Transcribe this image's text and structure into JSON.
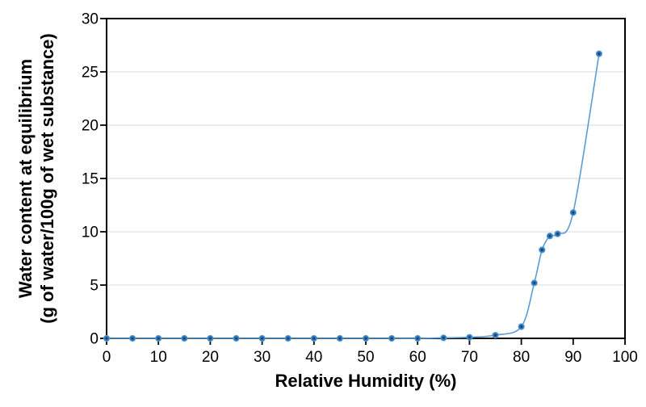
{
  "chart_data": {
    "type": "scatter",
    "subtype": "smooth-line-with-markers",
    "title": "",
    "xlabel": "Relative Humidity (%)",
    "ylabel_lines": [
      "Water content at equilibrium",
      "(g of water/100g of wet substance)"
    ],
    "xlim": [
      0,
      100
    ],
    "ylim": [
      0,
      30
    ],
    "x_ticks": [
      0,
      10,
      20,
      30,
      40,
      50,
      60,
      70,
      80,
      90,
      100
    ],
    "y_ticks": [
      0,
      5,
      10,
      15,
      20,
      25,
      30
    ],
    "grid": "horizontal-major",
    "legend": "none",
    "series": [
      {
        "name": "water content at equilibrium",
        "x": [
          0,
          5,
          10,
          15,
          20,
          25,
          30,
          35,
          40,
          45,
          50,
          55,
          60,
          65,
          70,
          75,
          80,
          82.5,
          84,
          85.5,
          87,
          90,
          95
        ],
        "y": [
          0,
          0,
          0,
          0,
          0,
          0,
          0,
          0,
          0,
          0,
          0,
          0,
          0,
          0.05,
          0.1,
          0.3,
          1.1,
          5.2,
          8.3,
          9.6,
          9.8,
          11.8,
          26.7
        ]
      }
    ],
    "colors": {
      "line": "#5B9BD5",
      "marker": "#2E75B6",
      "marker_center": "#17375E",
      "grid": "#D9D9D9",
      "axis": "#000000",
      "text": "#000000",
      "background": "#FFFFFF"
    }
  }
}
